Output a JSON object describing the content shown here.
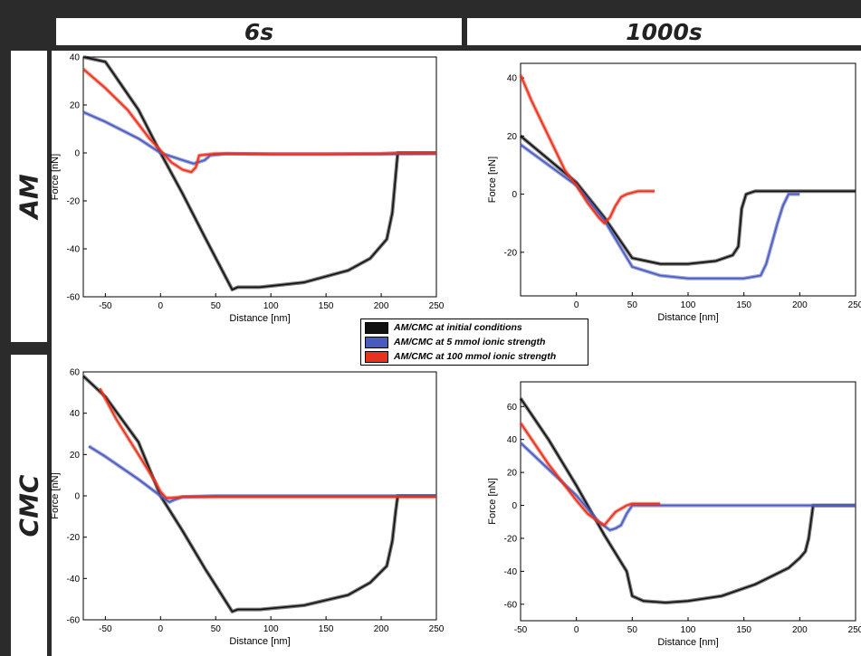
{
  "columns": [
    "6s",
    "1000s"
  ],
  "rows": [
    "AM",
    "CMC"
  ],
  "legend": [
    {
      "label": "AM/CMC at initial conditions",
      "color": "#111111"
    },
    {
      "label": "AM/CMC at 5 mmol ionic strength",
      "color": "#4a5bbf"
    },
    {
      "label": "AM/CMC at 100 mmol ionic strength",
      "color": "#e8321e"
    }
  ],
  "chart_data": [
    {
      "type": "line",
      "row": "AM",
      "column": "6s",
      "xlabel": "Distance [nm]",
      "ylabel": "Force [nN]",
      "xlim": [
        -70,
        250
      ],
      "ylim": [
        -60,
        40
      ],
      "xticks": [
        -50,
        0,
        50,
        100,
        150,
        200,
        250
      ],
      "yticks": [
        -60,
        -40,
        -20,
        0,
        20,
        40
      ],
      "series": [
        {
          "name": "AM/CMC at initial conditions",
          "x": [
            -70,
            -50,
            -20,
            0,
            20,
            40,
            65,
            70,
            90,
            130,
            170,
            190,
            205,
            210,
            213,
            215,
            217,
            220,
            250
          ],
          "y": [
            55,
            38,
            18,
            0,
            -17,
            -35,
            -57,
            -56,
            -56,
            -54,
            -49,
            -44,
            -36,
            -25,
            -10,
            0,
            0,
            0,
            0
          ]
        },
        {
          "name": "AM/CMC at 5 mmol ionic strength",
          "x": [
            -70,
            -50,
            -20,
            0,
            20,
            30,
            40,
            45,
            60,
            100,
            150,
            200,
            250
          ],
          "y": [
            17,
            13,
            6,
            0,
            -3,
            -4.5,
            -3,
            -1,
            -0.3,
            -0.5,
            -0.5,
            -0.5,
            -0.3
          ]
        },
        {
          "name": "AM/CMC at 100 mmol ionic strength",
          "x": [
            -70,
            -50,
            -30,
            -10,
            0,
            10,
            20,
            28,
            32,
            35,
            50,
            100,
            150,
            200,
            215,
            250
          ],
          "y": [
            35,
            27,
            18,
            6,
            1,
            -4,
            -7,
            -8,
            -6,
            -1,
            -0.3,
            -0.5,
            -0.5,
            -0.3,
            0,
            0
          ]
        }
      ]
    },
    {
      "type": "line",
      "row": "AM",
      "column": "1000s",
      "xlabel": "Distance [nm]",
      "ylabel": "Force [nN]",
      "xlim": [
        -50,
        250
      ],
      "ylim": [
        -35,
        45
      ],
      "xticks": [
        0,
        50,
        100,
        150,
        200,
        250
      ],
      "yticks": [
        -20,
        0,
        20,
        40
      ],
      "series": [
        {
          "name": "AM/CMC at initial conditions",
          "x": [
            -50,
            -25,
            0,
            25,
            50,
            75,
            100,
            125,
            140,
            145,
            148,
            152,
            160,
            200,
            250
          ],
          "y": [
            20,
            12,
            4,
            -8,
            -22,
            -24,
            -24,
            -23,
            -21,
            -18,
            -5,
            0,
            1,
            1,
            1
          ]
        },
        {
          "name": "AM/CMC at 5 mmol ionic strength",
          "x": [
            -50,
            -25,
            0,
            25,
            50,
            75,
            100,
            125,
            150,
            165,
            170,
            175,
            180,
            185,
            190,
            200
          ],
          "y": [
            17,
            10,
            3,
            -9,
            -25,
            -28,
            -29,
            -29,
            -29,
            -28,
            -24,
            -17,
            -10,
            -4,
            0,
            0
          ]
        },
        {
          "name": "AM/CMC at 100 mmol ionic strength",
          "x": [
            -50,
            -40,
            -25,
            -10,
            0,
            10,
            20,
            25,
            30,
            35,
            40,
            45,
            55,
            60,
            70
          ],
          "y": [
            41,
            32,
            20,
            8,
            3,
            -3,
            -8,
            -10,
            -8,
            -4,
            -1,
            0,
            1,
            1,
            1
          ]
        }
      ]
    },
    {
      "type": "line",
      "row": "CMC",
      "column": "6s",
      "xlabel": "Distance [nm]",
      "ylabel": "Force [nN]",
      "xlim": [
        -70,
        250
      ],
      "ylim": [
        -60,
        60
      ],
      "xticks": [
        -50,
        0,
        50,
        100,
        150,
        200,
        250
      ],
      "yticks": [
        -60,
        -40,
        -20,
        0,
        20,
        40,
        60
      ],
      "series": [
        {
          "name": "AM/CMC at initial conditions",
          "x": [
            -70,
            -50,
            -20,
            0,
            20,
            40,
            65,
            70,
            90,
            130,
            170,
            190,
            205,
            210,
            213,
            215,
            217,
            220,
            250
          ],
          "y": [
            58,
            48,
            26,
            0,
            -17,
            -35,
            -56,
            -55,
            -55,
            -53,
            -48,
            -42,
            -34,
            -22,
            -8,
            0,
            0,
            0,
            0
          ]
        },
        {
          "name": "AM/CMC at 5 mmol ionic strength",
          "x": [
            -65,
            -50,
            -20,
            0,
            8,
            12,
            20,
            50,
            100,
            150,
            200,
            250
          ],
          "y": [
            24,
            19,
            8,
            0,
            -3,
            -2,
            -0.5,
            0,
            0,
            0,
            0,
            0
          ]
        },
        {
          "name": "AM/CMC at 100 mmol ionic strength",
          "x": [
            -55,
            -40,
            -20,
            -5,
            0,
            5,
            10,
            20,
            50,
            100,
            150,
            200,
            250
          ],
          "y": [
            52,
            37,
            20,
            7,
            2,
            -1,
            -1,
            -0.5,
            -0.5,
            -0.5,
            -0.5,
            -0.5,
            -0.5
          ]
        }
      ]
    },
    {
      "type": "line",
      "row": "CMC",
      "column": "1000s",
      "xlabel": "Distance [nm]",
      "ylabel": "Force [nN]",
      "xlim": [
        -50,
        250
      ],
      "ylim": [
        -70,
        75
      ],
      "xticks": [
        -50,
        0,
        50,
        100,
        150,
        200,
        250
      ],
      "yticks": [
        -60,
        -40,
        -20,
        0,
        20,
        40,
        60
      ],
      "series": [
        {
          "name": "AM/CMC at initial conditions",
          "x": [
            -50,
            -25,
            0,
            25,
            45,
            50,
            60,
            80,
            100,
            130,
            160,
            190,
            200,
            205,
            208,
            210,
            212,
            215,
            250
          ],
          "y": [
            65,
            40,
            12,
            -18,
            -40,
            -55,
            -58,
            -59,
            -58,
            -55,
            -48,
            -38,
            -32,
            -28,
            -20,
            -10,
            0,
            0,
            0
          ]
        },
        {
          "name": "AM/CMC at 5 mmol ionic strength",
          "x": [
            -50,
            -25,
            0,
            20,
            30,
            35,
            40,
            45,
            50,
            100,
            150,
            200,
            250
          ],
          "y": [
            38,
            22,
            6,
            -10,
            -15,
            -14,
            -12,
            -5,
            0,
            0,
            0,
            0,
            0
          ]
        },
        {
          "name": "AM/CMC at 100 mmol ionic strength",
          "x": [
            -50,
            -25,
            0,
            10,
            20,
            25,
            30,
            35,
            40,
            45,
            50,
            60,
            75
          ],
          "y": [
            50,
            25,
            3,
            -5,
            -10,
            -12,
            -8,
            -4,
            -2,
            0,
            1,
            1,
            1
          ]
        }
      ]
    }
  ]
}
